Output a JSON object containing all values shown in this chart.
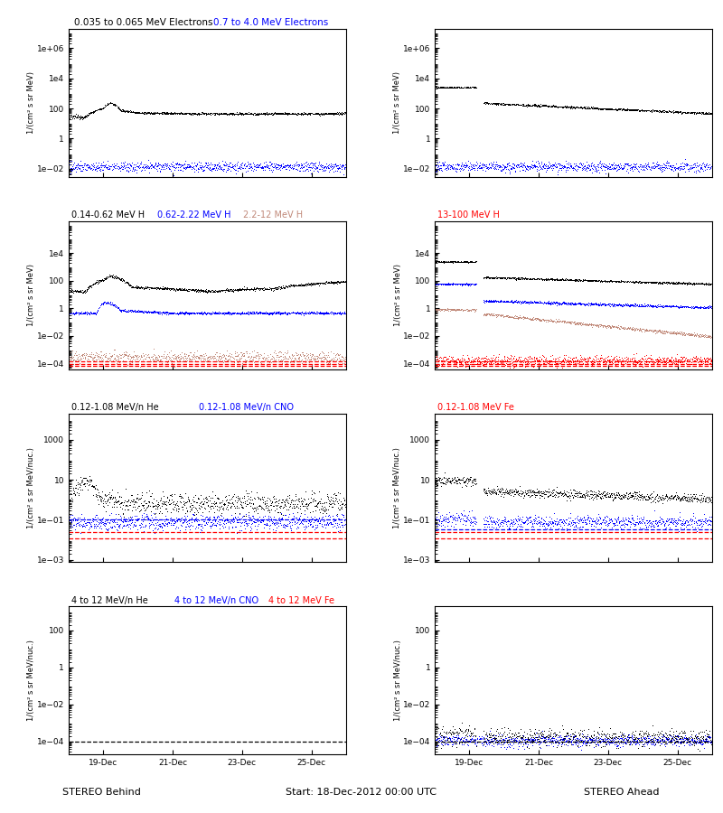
{
  "title_row0_left_black": "0.035 to 0.065 MeV Electrons",
  "title_row0_left_blue": "0.7 to 4.0 MeV Electrons",
  "title_row1_black": "0.14-0.62 MeV H",
  "title_row1_blue": "0.62-2.22 MeV H",
  "title_row1_brown": "2.2-12 MeV H",
  "title_row1_red": "13-100 MeV H",
  "title_row2_black": "0.12-1.08 MeV/n He",
  "title_row2_blue": "0.12-1.08 MeV/n CNO",
  "title_row2_red": "0.12-1.08 MeV Fe",
  "title_row3_black": "4 to 12 MeV/n He",
  "title_row3_blue": "4 to 12 MeV/n CNO",
  "title_row3_red": "4 to 12 MeV Fe",
  "xlabel": "Start: 18-Dec-2012 00:00 UTC",
  "ylabel_mev": "1/(cm² s sr MeV)",
  "ylabel_mevnuc": "1/(cm² s sr MeV/nuc.)",
  "xtick_labels": [
    "19-Dec",
    "21-Dec",
    "23-Dec",
    "25-Dec"
  ],
  "stereo_behind": "STEREO Behind",
  "stereo_ahead": "STEREO Ahead",
  "color_black": "#000000",
  "color_blue": "#0000FF",
  "color_brown": "#C08878",
  "color_red": "#FF0000",
  "bg_color": "#FFFFFF",
  "row0_ylim": [
    0.003,
    20000000.0
  ],
  "row1_ylim": [
    4e-05,
    2000000.0
  ],
  "row2_ylim": [
    0.0008,
    20000.0
  ],
  "row3_ylim": [
    2e-05,
    2000.0
  ],
  "row0_yticks": [
    0.01,
    1.0,
    100.0,
    10000.0,
    1000000.0
  ],
  "row1_yticks": [
    0.0001,
    0.01,
    1.0,
    100.0,
    10000.0
  ],
  "row2_yticks": [
    0.001,
    0.1,
    10.0,
    1000.0
  ],
  "row3_yticks": [
    0.0001,
    0.01,
    1.0,
    100.0
  ]
}
